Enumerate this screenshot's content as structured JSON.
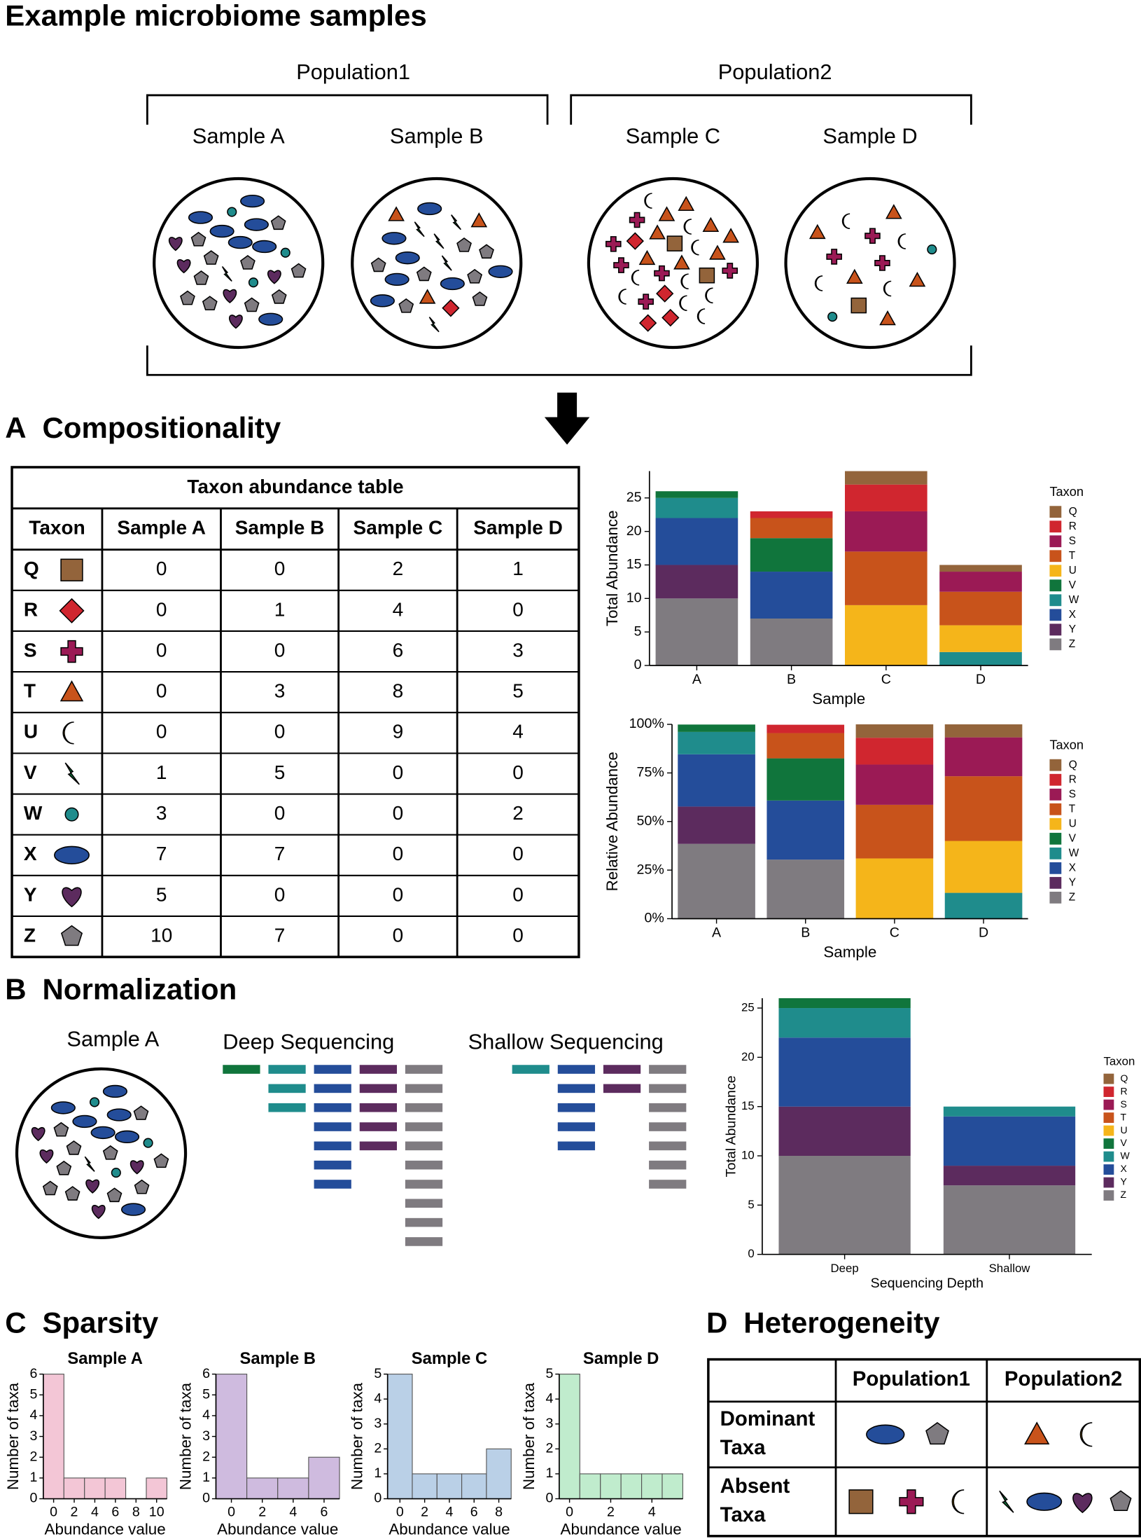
{
  "title": "Example microbiome samples",
  "populations": [
    {
      "label": "Population1",
      "samples": [
        "Sample A",
        "Sample B"
      ]
    },
    {
      "label": "Population2",
      "samples": [
        "Sample C",
        "Sample D"
      ]
    }
  ],
  "sections": [
    {
      "letter": "A",
      "title": "Compositionality"
    },
    {
      "letter": "B",
      "title": "Normalization"
    },
    {
      "letter": "C",
      "title": "Sparsity"
    },
    {
      "letter": "D",
      "title": "Heterogeneity"
    }
  ],
  "taxon_colors": {
    "Q": "#93643b",
    "R": "#d0262f",
    "S": "#9b1a55",
    "T": "#c8531b",
    "U": "#f5b51a",
    "V": "#10753c",
    "W": "#1f8c8c",
    "X": "#244d9a",
    "Y": "#5c2b5e",
    "Z": "#7f7b80"
  },
  "abundance_table": {
    "title": "Taxon abundance table",
    "columns": [
      "Taxon",
      "Sample A",
      "Sample B",
      "Sample C",
      "Sample D"
    ],
    "rows": [
      [
        "Q",
        0,
        0,
        2,
        1
      ],
      [
        "R",
        0,
        1,
        4,
        0
      ],
      [
        "S",
        0,
        0,
        6,
        3
      ],
      [
        "T",
        0,
        3,
        8,
        5
      ],
      [
        "U",
        0,
        0,
        9,
        4
      ],
      [
        "V",
        1,
        5,
        0,
        0
      ],
      [
        "W",
        3,
        0,
        0,
        2
      ],
      [
        "X",
        7,
        7,
        0,
        0
      ],
      [
        "Y",
        5,
        0,
        0,
        0
      ],
      [
        "Z",
        10,
        7,
        0,
        0
      ]
    ]
  },
  "normalization": {
    "sample": "Sample A",
    "deep": "Deep Sequencing",
    "shallow": "Shallow Sequencing"
  },
  "heterogeneity": {
    "columns": [
      "Population1",
      "Population2"
    ],
    "rows": [
      {
        "label": [
          "Dominant",
          "Taxa"
        ],
        "taxa": [
          [
            "X",
            "Z"
          ],
          [
            "T",
            "U"
          ]
        ]
      },
      {
        "label": [
          "Absent",
          "Taxa"
        ],
        "taxa": [
          [
            "Q",
            "S",
            "U"
          ],
          [
            "V",
            "X",
            "Y",
            "Z"
          ]
        ]
      }
    ]
  },
  "chart_data": [
    {
      "type": "stacked_bar",
      "xlabel": "Sample",
      "ylabel": "Total Abundance",
      "legend_title": "Taxon",
      "categories": [
        "A",
        "B",
        "C",
        "D"
      ],
      "ylim": [
        0,
        29
      ],
      "yticks": [
        0,
        5,
        10,
        15,
        20,
        25
      ],
      "series": [
        {
          "name": "Q",
          "color": "#93643b",
          "values": [
            0,
            0,
            2,
            1
          ]
        },
        {
          "name": "R",
          "color": "#d0262f",
          "values": [
            0,
            1,
            4,
            0
          ]
        },
        {
          "name": "S",
          "color": "#9b1a55",
          "values": [
            0,
            0,
            6,
            3
          ]
        },
        {
          "name": "T",
          "color": "#c8531b",
          "values": [
            0,
            3,
            8,
            5
          ]
        },
        {
          "name": "U",
          "color": "#f5b51a",
          "values": [
            0,
            0,
            9,
            4
          ]
        },
        {
          "name": "V",
          "color": "#10753c",
          "values": [
            1,
            5,
            0,
            0
          ]
        },
        {
          "name": "W",
          "color": "#1f8c8c",
          "values": [
            3,
            0,
            0,
            2
          ]
        },
        {
          "name": "X",
          "color": "#244d9a",
          "values": [
            7,
            7,
            0,
            0
          ]
        },
        {
          "name": "Y",
          "color": "#5c2b5e",
          "values": [
            5,
            0,
            0,
            0
          ]
        },
        {
          "name": "Z",
          "color": "#7f7b80",
          "values": [
            10,
            7,
            0,
            0
          ]
        }
      ]
    },
    {
      "type": "stacked_bar",
      "xlabel": "Sample",
      "ylabel": "Relative Abundance",
      "legend_title": "Taxon",
      "categories": [
        "A",
        "B",
        "C",
        "D"
      ],
      "ylim": [
        0,
        100
      ],
      "yticks": [
        {
          "value": 0,
          "label": "0%"
        },
        {
          "value": 25,
          "label": "25%"
        },
        {
          "value": 50,
          "label": "50%"
        },
        {
          "value": 75,
          "label": "75%"
        },
        {
          "value": 100,
          "label": "100%"
        }
      ],
      "series": [
        {
          "name": "Q",
          "color": "#93643b",
          "values": [
            0,
            0,
            6.9,
            6.7
          ]
        },
        {
          "name": "R",
          "color": "#d0262f",
          "values": [
            0,
            4.3,
            13.8,
            0
          ]
        },
        {
          "name": "S",
          "color": "#9b1a55",
          "values": [
            0,
            0,
            20.7,
            20.0
          ]
        },
        {
          "name": "T",
          "color": "#c8531b",
          "values": [
            0,
            13.0,
            27.6,
            33.3
          ]
        },
        {
          "name": "U",
          "color": "#f5b51a",
          "values": [
            0,
            0,
            31.0,
            26.7
          ]
        },
        {
          "name": "V",
          "color": "#10753c",
          "values": [
            3.8,
            21.7,
            0,
            0
          ]
        },
        {
          "name": "W",
          "color": "#1f8c8c",
          "values": [
            11.5,
            0,
            0,
            13.3
          ]
        },
        {
          "name": "X",
          "color": "#244d9a",
          "values": [
            26.9,
            30.4,
            0,
            0
          ]
        },
        {
          "name": "Y",
          "color": "#5c2b5e",
          "values": [
            19.2,
            0,
            0,
            0
          ]
        },
        {
          "name": "Z",
          "color": "#7f7b80",
          "values": [
            38.5,
            30.4,
            0,
            0
          ]
        }
      ]
    },
    {
      "type": "stacked_bar",
      "xlabel": "Sequencing Depth",
      "ylabel": "Total Abundance",
      "legend_title": "Taxon",
      "categories": [
        "Deep",
        "Shallow"
      ],
      "ylim": [
        0,
        26
      ],
      "yticks": [
        0,
        5,
        10,
        15,
        20,
        25
      ],
      "series": [
        {
          "name": "Q",
          "color": "#93643b",
          "values": [
            0,
            0
          ]
        },
        {
          "name": "R",
          "color": "#d0262f",
          "values": [
            0,
            0
          ]
        },
        {
          "name": "S",
          "color": "#9b1a55",
          "values": [
            0,
            0
          ]
        },
        {
          "name": "T",
          "color": "#c8531b",
          "values": [
            0,
            0
          ]
        },
        {
          "name": "U",
          "color": "#f5b51a",
          "values": [
            0,
            0
          ]
        },
        {
          "name": "V",
          "color": "#10753c",
          "values": [
            1,
            0
          ]
        },
        {
          "name": "W",
          "color": "#1f8c8c",
          "values": [
            3,
            1
          ]
        },
        {
          "name": "X",
          "color": "#244d9a",
          "values": [
            7,
            5
          ]
        },
        {
          "name": "Y",
          "color": "#5c2b5e",
          "values": [
            5,
            2
          ]
        },
        {
          "name": "Z",
          "color": "#7f7b80",
          "values": [
            10,
            7
          ]
        }
      ]
    },
    {
      "type": "histogram",
      "title": "Sample A",
      "xlabel": "Abundance value",
      "ylabel": "Number of taxa",
      "color": "#f3c6d6",
      "bins": [
        -1,
        1,
        3,
        5,
        7,
        9,
        11
      ],
      "values": [
        6,
        1,
        1,
        1,
        0,
        1
      ],
      "xlim": [
        -1,
        11
      ],
      "xticks": [
        0,
        2,
        4,
        6,
        8,
        10
      ],
      "ylim": [
        0,
        6
      ],
      "yticks": [
        0,
        1,
        2,
        3,
        4,
        5,
        6
      ]
    },
    {
      "type": "histogram",
      "title": "Sample B",
      "xlabel": "Abundance value",
      "ylabel": "Number of taxa",
      "color": "#cfbbdf",
      "bins": [
        -1,
        1,
        3,
        5,
        7
      ],
      "values": [
        6,
        1,
        1,
        2
      ],
      "xlim": [
        -1,
        7
      ],
      "xticks": [
        0,
        2,
        4,
        6
      ],
      "ylim": [
        0,
        6
      ],
      "yticks": [
        0,
        1,
        2,
        3,
        4,
        5,
        6
      ]
    },
    {
      "type": "histogram",
      "title": "Sample C",
      "xlabel": "Abundance value",
      "ylabel": "Number of taxa",
      "color": "#bad0e7",
      "bins": [
        -1,
        1,
        3,
        5,
        7,
        9
      ],
      "values": [
        5,
        1,
        1,
        1,
        2
      ],
      "xlim": [
        -1,
        9
      ],
      "xticks": [
        0,
        2,
        4,
        6,
        8
      ],
      "ylim": [
        0,
        5
      ],
      "yticks": [
        0,
        1,
        2,
        3,
        4,
        5
      ]
    },
    {
      "type": "histogram",
      "title": "Sample D",
      "xlabel": "Abundance value",
      "ylabel": "Number of taxa",
      "color": "#c0eccd",
      "bins": [
        -0.5,
        0.5,
        1.5,
        2.5,
        3.5,
        4.5,
        5.5
      ],
      "values": [
        5,
        1,
        1,
        1,
        1,
        1
      ],
      "xlim": [
        -0.5,
        5.5
      ],
      "xticks": [
        0,
        2,
        4
      ],
      "ylim": [
        0,
        5
      ],
      "yticks": [
        0,
        1,
        2,
        3,
        4,
        5
      ]
    }
  ]
}
